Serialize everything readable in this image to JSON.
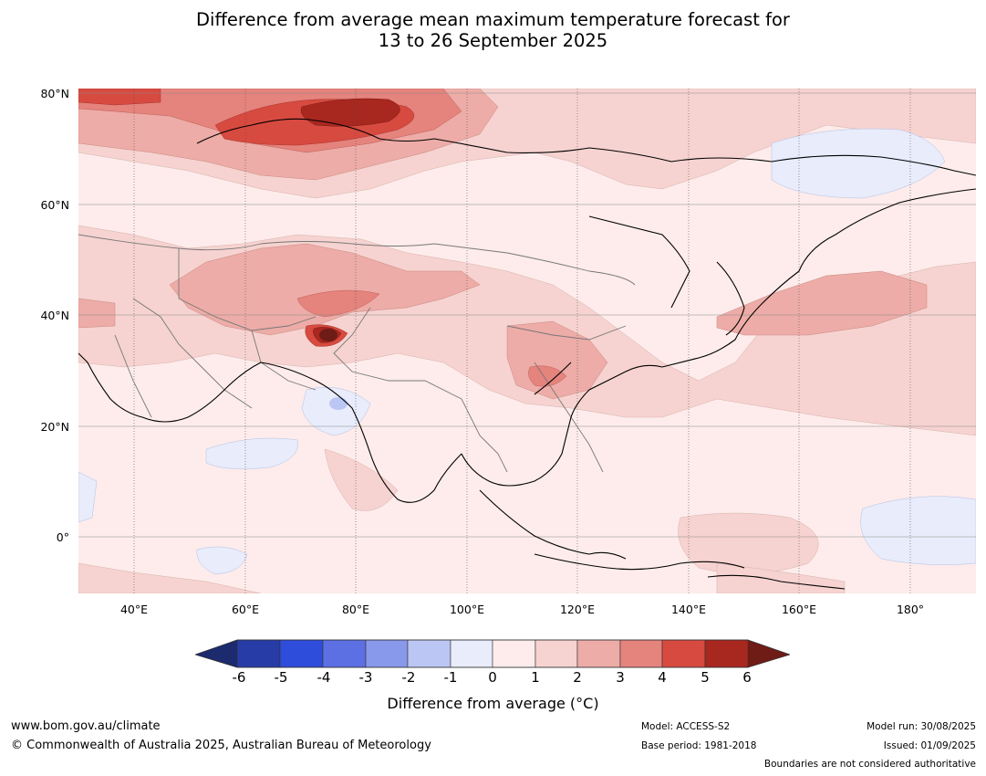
{
  "title": {
    "line1": "Difference from average mean maximum temperature forecast for",
    "line2": "13 to 26 September 2025"
  },
  "axes": {
    "lat_labels": [
      "80°N",
      "60°N",
      "40°N",
      "20°N",
      "0°"
    ],
    "lon_labels": [
      "40°E",
      "60°E",
      "80°E",
      "100°E",
      "120°E",
      "140°E",
      "160°E",
      "180°"
    ]
  },
  "colorbar": {
    "ticks": [
      "-6",
      "-5",
      "-4",
      "-3",
      "-2",
      "-1",
      "0",
      "1",
      "2",
      "3",
      "4",
      "5",
      "6"
    ],
    "colors": [
      "#1c2a6e",
      "#283ca8",
      "#2f4ddb",
      "#5c70e4",
      "#8898eb",
      "#bcc6f4",
      "#e8ecfb",
      "#fdeceb",
      "#f6d3d0",
      "#edaca7",
      "#e5837d",
      "#d74a40",
      "#a8271f",
      "#6f1b16"
    ],
    "label": "Difference from average (°C)"
  },
  "footer": {
    "url": "www.bom.gov.au/climate",
    "copyright": "© Commonwealth of Australia 2025, Australian Bureau of Meteorology",
    "model": "Model: ACCESS-S2",
    "base_period": "Base period: 1981-2018",
    "model_run": "Model run: 30/08/2025",
    "issued": "Issued: 01/09/2025",
    "disclaimer": "Boundaries are not considered authoritative"
  }
}
